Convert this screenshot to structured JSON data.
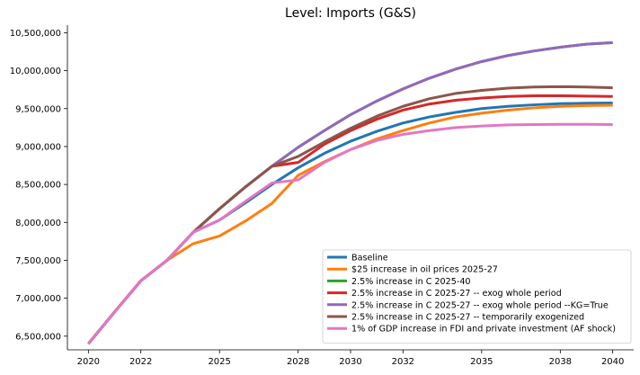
{
  "chart_data": {
    "type": "line",
    "title": "Level: Imports (G&S)",
    "xlabel": "",
    "ylabel": "",
    "xlim": [
      2019.2,
      2040.8
    ],
    "ylim": [
      6320000,
      10600000
    ],
    "x_ticks": [
      2020,
      2022,
      2025,
      2028,
      2030,
      2032,
      2035,
      2038,
      2040
    ],
    "x_tick_labels": [
      "2020",
      "2022",
      "2025",
      "2028",
      "2030",
      "2032",
      "2035",
      "2038",
      "2040"
    ],
    "y_ticks": [
      6500000,
      7000000,
      7500000,
      8000000,
      8500000,
      9000000,
      9500000,
      10000000,
      10500000
    ],
    "y_tick_labels": [
      "6,500,000",
      "7,000,000",
      "7,500,000",
      "8,000,000",
      "8,500,000",
      "9,000,000",
      "9,500,000",
      "10,000,000",
      "10,500,000"
    ],
    "grid": false,
    "legend_position": "bottom-right",
    "x": [
      2020,
      2021,
      2022,
      2023,
      2024,
      2025,
      2026,
      2027,
      2028,
      2029,
      2030,
      2031,
      2032,
      2033,
      2034,
      2035,
      2036,
      2037,
      2038,
      2039,
      2040
    ],
    "series": [
      {
        "name": "Baseline",
        "color": "#1f77b4",
        "values": [
          6400000,
          6820000,
          7230000,
          7500000,
          7870000,
          8030000,
          8260000,
          8500000,
          8720000,
          8910000,
          9070000,
          9200000,
          9310000,
          9390000,
          9450000,
          9500000,
          9530000,
          9550000,
          9565000,
          9572000,
          9575000
        ]
      },
      {
        "name": "$25 increase in oil prices 2025-27",
        "color": "#ff7f0e",
        "values": [
          6400000,
          6820000,
          7230000,
          7500000,
          7720000,
          7820000,
          8020000,
          8250000,
          8620000,
          8800000,
          8960000,
          9100000,
          9210000,
          9310000,
          9390000,
          9440000,
          9480000,
          9510000,
          9530000,
          9540000,
          9545000
        ]
      },
      {
        "name": "2.5% increase in C 2025-40",
        "color": "#2ca02c",
        "values": [
          6400000,
          6820000,
          7230000,
          7500000,
          7870000,
          8180000,
          8470000,
          8740000,
          8990000,
          9210000,
          9420000,
          9600000,
          9760000,
          9900000,
          10020000,
          10120000,
          10200000,
          10260000,
          10310000,
          10350000,
          10370000
        ]
      },
      {
        "name": "2.5% increase in C 2025-27 -- exog whole period",
        "color": "#d62728",
        "values": [
          6400000,
          6820000,
          7230000,
          7500000,
          7870000,
          8180000,
          8470000,
          8740000,
          8790000,
          9030000,
          9210000,
          9360000,
          9480000,
          9560000,
          9610000,
          9640000,
          9660000,
          9670000,
          9670000,
          9665000,
          9660000
        ]
      },
      {
        "name": "2.5% increase in C 2025-27 -- exog whole period --KG=True",
        "color": "#9467bd",
        "values": [
          6400000,
          6820000,
          7230000,
          7500000,
          7870000,
          8180000,
          8470000,
          8740000,
          8990000,
          9210000,
          9420000,
          9600000,
          9760000,
          9900000,
          10020000,
          10120000,
          10200000,
          10260000,
          10310000,
          10350000,
          10370000
        ]
      },
      {
        "name": "2.5% increase in C 2025-27 -- temporarily exogenized",
        "color": "#8c564b",
        "values": [
          6400000,
          6820000,
          7230000,
          7500000,
          7870000,
          8180000,
          8470000,
          8740000,
          8870000,
          9060000,
          9240000,
          9400000,
          9530000,
          9630000,
          9700000,
          9740000,
          9770000,
          9785000,
          9790000,
          9785000,
          9775000
        ]
      },
      {
        "name": "1% of GDP increase in FDI and private investment (AF shock)",
        "color": "#e377c2",
        "values": [
          6400000,
          6820000,
          7230000,
          7500000,
          7870000,
          8030000,
          8280000,
          8520000,
          8560000,
          8790000,
          8960000,
          9080000,
          9160000,
          9210000,
          9250000,
          9270000,
          9285000,
          9290000,
          9293000,
          9293000,
          9290000
        ]
      }
    ]
  }
}
